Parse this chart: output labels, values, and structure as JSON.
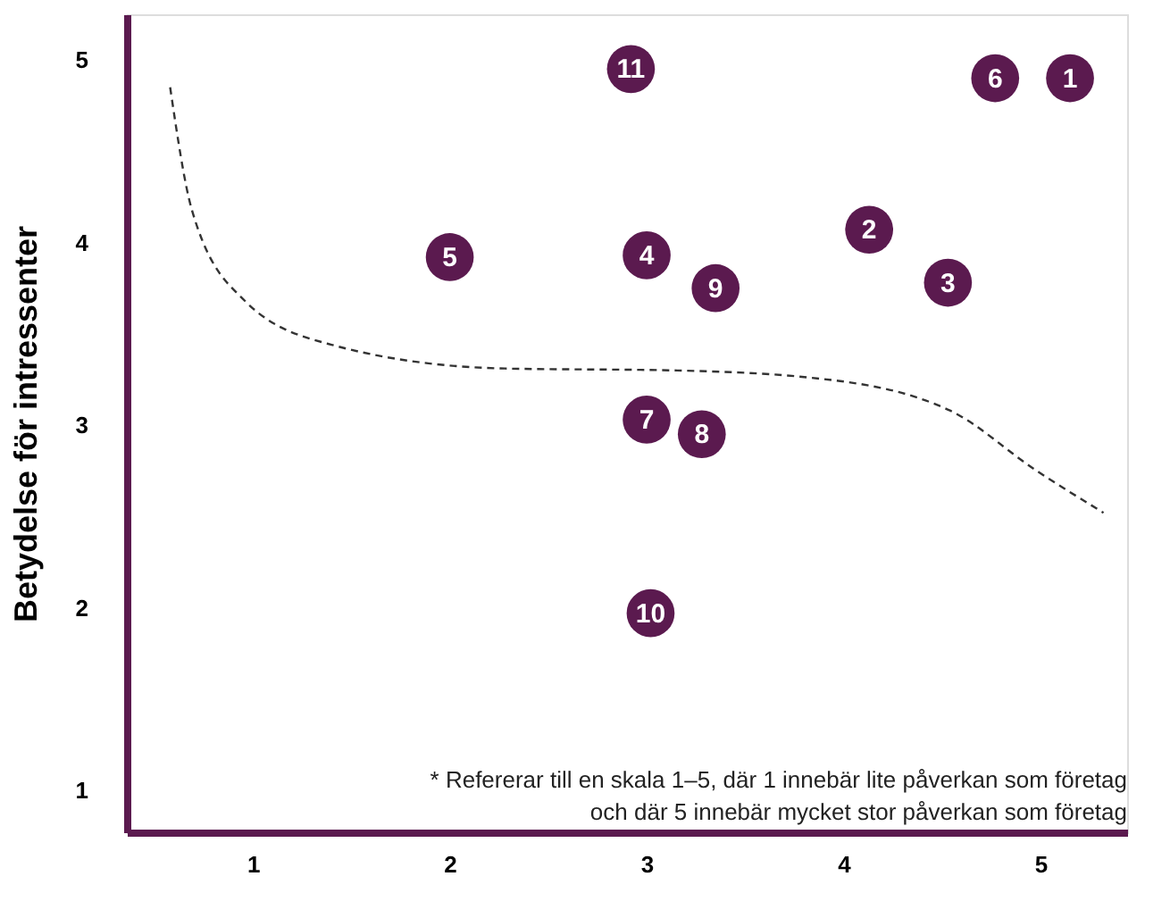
{
  "chart_data": {
    "type": "scatter",
    "ylabel": "Betydelse för intressenter",
    "xlim": [
      0.36,
      5.44
    ],
    "ylim": [
      0.77,
      5.25
    ],
    "xticks": [
      1,
      2,
      3,
      4,
      5
    ],
    "yticks": [
      1,
      2,
      3,
      4,
      5
    ],
    "grid": false,
    "series": [
      {
        "color": "#5b1a4f",
        "marker": "circle",
        "x": [
          5.15,
          4.13,
          4.53,
          3.0,
          2.0,
          4.77,
          3.0,
          3.28,
          3.35,
          3.02,
          2.92
        ],
        "values": [
          4.9,
          4.07,
          3.78,
          3.93,
          3.92,
          4.9,
          3.03,
          2.95,
          3.75,
          1.97,
          4.95
        ]
      },
      {
        "type": "line",
        "color": "#333333",
        "line_style": "dashed",
        "x": [
          0.58,
          0.69,
          0.96,
          1.4,
          2.28,
          3.12,
          3.83,
          4.54,
          4.98,
          5.32
        ],
        "values": [
          4.85,
          4.18,
          3.68,
          3.44,
          3.31,
          3.3,
          3.26,
          3.08,
          2.75,
          2.52
        ]
      }
    ],
    "annotations": [
      {
        "text": "1",
        "x": 5.15,
        "y": 4.9
      },
      {
        "text": "2",
        "x": 4.13,
        "y": 4.07
      },
      {
        "text": "3",
        "x": 4.53,
        "y": 3.78
      },
      {
        "text": "4",
        "x": 3.0,
        "y": 3.93
      },
      {
        "text": "5",
        "x": 2.0,
        "y": 3.92
      },
      {
        "text": "6",
        "x": 4.77,
        "y": 4.9
      },
      {
        "text": "7",
        "x": 3.0,
        "y": 3.03
      },
      {
        "text": "8",
        "x": 3.28,
        "y": 2.95
      },
      {
        "text": "9",
        "x": 3.35,
        "y": 3.75
      },
      {
        "text": "10",
        "x": 3.02,
        "y": 1.97
      },
      {
        "text": "11",
        "x": 2.92,
        "y": 4.95
      },
      "* Refererar till en skala 1–5, där 1 innebär lite påverkan som företag och där 5 innebär mycket stor påverkan som företag"
    ]
  }
}
